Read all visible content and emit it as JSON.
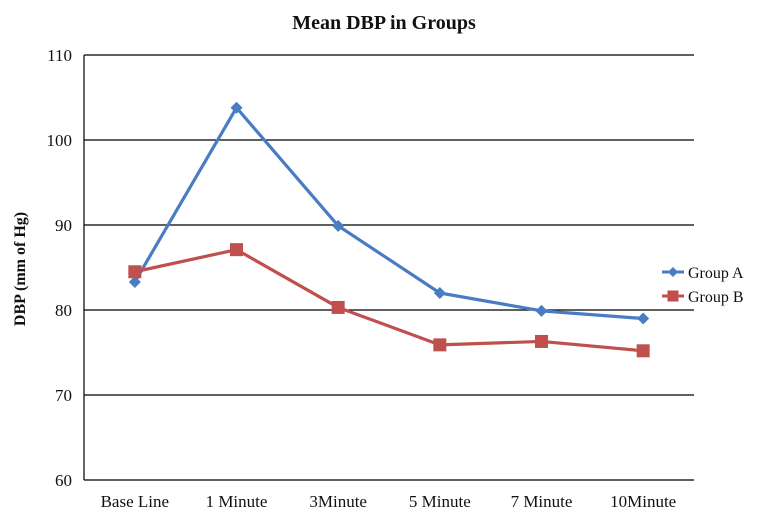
{
  "chart_data": {
    "type": "line",
    "title": "Mean DBP in Groups",
    "xlabel": "",
    "ylabel": "DBP (mm of Hg)",
    "categories": [
      "Base Line",
      "1 Minute",
      "3Minute",
      "5 Minute",
      "7 Minute",
      "10Minute"
    ],
    "ylim": [
      60,
      110
    ],
    "yticks": [
      60,
      70,
      80,
      90,
      100,
      110
    ],
    "grid": true,
    "legend_position": "right",
    "series": [
      {
        "name": "Group A",
        "color": "#4a7cc4",
        "marker": "diamond",
        "values": [
          83.3,
          103.8,
          89.9,
          82.0,
          79.9,
          79.0
        ]
      },
      {
        "name": "Group B",
        "color": "#c0504d",
        "marker": "square",
        "values": [
          84.5,
          87.1,
          80.3,
          75.9,
          76.3,
          75.2
        ]
      }
    ]
  }
}
